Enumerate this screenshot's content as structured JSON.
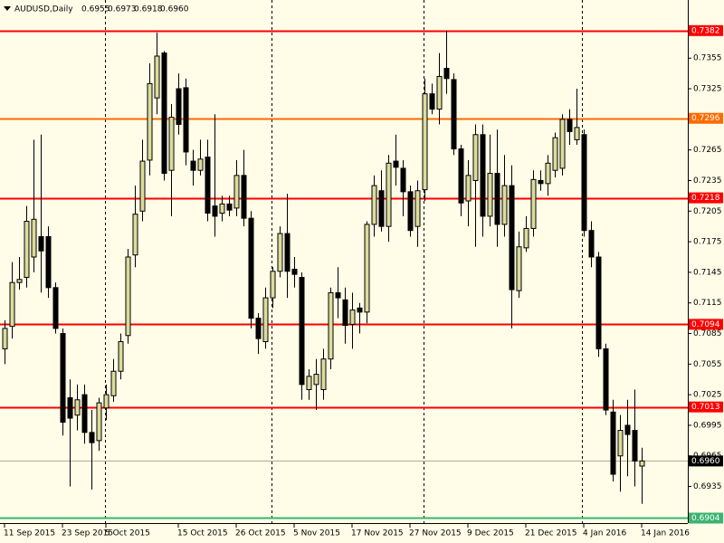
{
  "chart_data": {
    "type": "candlestick",
    "symbol": "AUDUSD,Daily",
    "last_ohlc_labels": [
      "0.6955",
      "0.6973",
      "0.6918",
      "0.6960"
    ],
    "categories": [
      "11 Sep 2015",
      null,
      null,
      null,
      null,
      null,
      null,
      null,
      "23 Sep 2015",
      null,
      null,
      null,
      null,
      null,
      "5 Oct 2015",
      null,
      null,
      null,
      null,
      null,
      null,
      null,
      null,
      null,
      "15 Oct 2015",
      null,
      null,
      null,
      null,
      null,
      null,
      null,
      "26 Oct 2015",
      null,
      null,
      null,
      null,
      null,
      null,
      null,
      "5 Nov 2015",
      null,
      null,
      null,
      null,
      null,
      null,
      null,
      "17 Nov 2015",
      null,
      null,
      null,
      null,
      null,
      null,
      null,
      "27 Nov 2015",
      null,
      null,
      null,
      null,
      null,
      null,
      null,
      "9 Dec 2015",
      null,
      null,
      null,
      null,
      null,
      null,
      null,
      "21 Dec 2015",
      null,
      null,
      null,
      null,
      null,
      null,
      null,
      "4 Jan 2016",
      null,
      null,
      null,
      null,
      null,
      null,
      null,
      "14 Jan 2016"
    ],
    "open": [
      0.707,
      0.7092,
      0.7135,
      0.714,
      0.716,
      0.718,
      0.718,
      0.713,
      0.7085,
      0.7022,
      0.7005,
      0.7025,
      0.6988,
      0.698,
      0.7012,
      0.7024,
      0.7048,
      0.7083,
      0.7162,
      0.7205,
      0.7255,
      0.7316,
      0.736,
      0.7245,
      0.7325,
      0.7326,
      0.7254,
      0.7245,
      0.7258,
      0.721,
      0.7203,
      0.7212,
      0.7208,
      0.724,
      0.7198,
      0.71,
      0.7077,
      0.712,
      0.7146,
      0.7183,
      0.7148,
      0.714,
      0.703,
      0.7035,
      0.703,
      0.706,
      0.7125,
      0.7118,
      0.7094,
      0.711,
      0.7106,
      0.7192,
      0.7225,
      0.719,
      0.7254,
      0.7247,
      0.7224,
      0.719,
      0.7226,
      0.732,
      0.7305,
      0.7345,
      0.7334,
      0.7266,
      0.7215,
      0.7235,
      0.728,
      0.72,
      0.7242,
      0.7192,
      0.723,
      0.7127,
      0.7169,
      0.7188,
      0.7235,
      0.7232,
      0.7245,
      0.7247,
      0.7295,
      0.7275,
      0.728,
      0.7186,
      0.716,
      0.707,
      0.7008,
      0.6965,
      0.6995,
      0.699,
      0.6955
    ],
    "high": [
      0.7098,
      0.7155,
      0.716,
      0.721,
      0.7275,
      0.728,
      0.719,
      0.7135,
      0.709,
      0.704,
      0.7035,
      0.7035,
      0.701,
      0.7022,
      0.7035,
      0.706,
      0.7085,
      0.7168,
      0.723,
      0.7275,
      0.735,
      0.738,
      0.7362,
      0.731,
      0.734,
      0.7335,
      0.7265,
      0.7275,
      0.7275,
      0.73,
      0.722,
      0.722,
      0.7255,
      0.7265,
      0.7205,
      0.7105,
      0.713,
      0.715,
      0.719,
      0.7222,
      0.716,
      0.7145,
      0.705,
      0.706,
      0.707,
      0.713,
      0.715,
      0.713,
      0.7125,
      0.7115,
      0.7195,
      0.724,
      0.7245,
      0.726,
      0.728,
      0.7255,
      0.723,
      0.7235,
      0.7335,
      0.733,
      0.736,
      0.7382,
      0.734,
      0.727,
      0.7255,
      0.729,
      0.729,
      0.728,
      0.7285,
      0.726,
      0.725,
      0.7185,
      0.72,
      0.7245,
      0.7245,
      0.726,
      0.7282,
      0.73,
      0.7305,
      0.7325,
      0.7285,
      0.7195,
      0.7165,
      0.7075,
      0.702,
      0.7005,
      0.702,
      0.703,
      0.6973
    ],
    "low": [
      0.7055,
      0.708,
      0.7128,
      0.713,
      0.7145,
      0.7125,
      0.712,
      0.7085,
      0.6985,
      0.6935,
      0.699,
      0.6977,
      0.6932,
      0.697,
      0.7,
      0.7018,
      0.704,
      0.7075,
      0.715,
      0.7195,
      0.724,
      0.73,
      0.7235,
      0.72,
      0.728,
      0.725,
      0.723,
      0.724,
      0.7195,
      0.718,
      0.7195,
      0.72,
      0.72,
      0.719,
      0.709,
      0.7065,
      0.707,
      0.711,
      0.714,
      0.712,
      0.713,
      0.702,
      0.702,
      0.701,
      0.702,
      0.705,
      0.71,
      0.7075,
      0.707,
      0.7085,
      0.7095,
      0.718,
      0.7185,
      0.7175,
      0.723,
      0.72,
      0.718,
      0.717,
      0.7215,
      0.73,
      0.729,
      0.732,
      0.726,
      0.72,
      0.719,
      0.717,
      0.718,
      0.719,
      0.717,
      0.718,
      0.709,
      0.712,
      0.7165,
      0.718,
      0.7225,
      0.722,
      0.7238,
      0.724,
      0.727,
      0.727,
      0.718,
      0.715,
      0.7062,
      0.7005,
      0.694,
      0.693,
      0.6945,
      0.6935,
      0.6918
    ],
    "close": [
      0.709,
      0.7135,
      0.7138,
      0.7195,
      0.7197,
      0.7166,
      0.713,
      0.709,
      0.6998,
      0.7002,
      0.702,
      0.6988,
      0.6978,
      0.7017,
      0.7025,
      0.7048,
      0.7077,
      0.716,
      0.7202,
      0.7254,
      0.733,
      0.7357,
      0.7242,
      0.7297,
      0.729,
      0.7263,
      0.7245,
      0.7256,
      0.7203,
      0.72,
      0.7212,
      0.7206,
      0.724,
      0.7198,
      0.71,
      0.708,
      0.712,
      0.7146,
      0.7183,
      0.7146,
      0.7143,
      0.7035,
      0.7043,
      0.7045,
      0.706,
      0.7125,
      0.712,
      0.7093,
      0.7108,
      0.7106,
      0.7192,
      0.723,
      0.719,
      0.7252,
      0.7248,
      0.7224,
      0.7186,
      0.7225,
      0.732,
      0.7305,
      0.7337,
      0.7335,
      0.7266,
      0.7213,
      0.724,
      0.728,
      0.72,
      0.7242,
      0.7192,
      0.723,
      0.7128,
      0.717,
      0.7188,
      0.7236,
      0.7232,
      0.7252,
      0.7277,
      0.7295,
      0.7283,
      0.7287,
      0.7186,
      0.716,
      0.707,
      0.701,
      0.6947,
      0.699,
      0.6986,
      0.696,
      0.696
    ],
    "up_color": "#dcdc9c",
    "down_color": "#000000",
    "ylim": [
      0.69,
      0.7412
    ],
    "yticks": [
      0.7355,
      0.7325,
      0.7295,
      0.7265,
      0.7235,
      0.7205,
      0.7175,
      0.7145,
      0.7115,
      0.7085,
      0.7055,
      0.7025,
      0.6995,
      0.6965,
      0.6935
    ],
    "levels": [
      {
        "value": 0.7382,
        "color": "#ff0000"
      },
      {
        "value": 0.7296,
        "color": "#ff6a00"
      },
      {
        "value": 0.7218,
        "color": "#ff0000"
      },
      {
        "value": 0.7094,
        "color": "#ff0000"
      },
      {
        "value": 0.7013,
        "color": "#ff0000"
      },
      {
        "value": 0.6904,
        "color": "#3cb371"
      }
    ],
    "current_price": {
      "value": 0.696,
      "label": "0.6960"
    }
  }
}
